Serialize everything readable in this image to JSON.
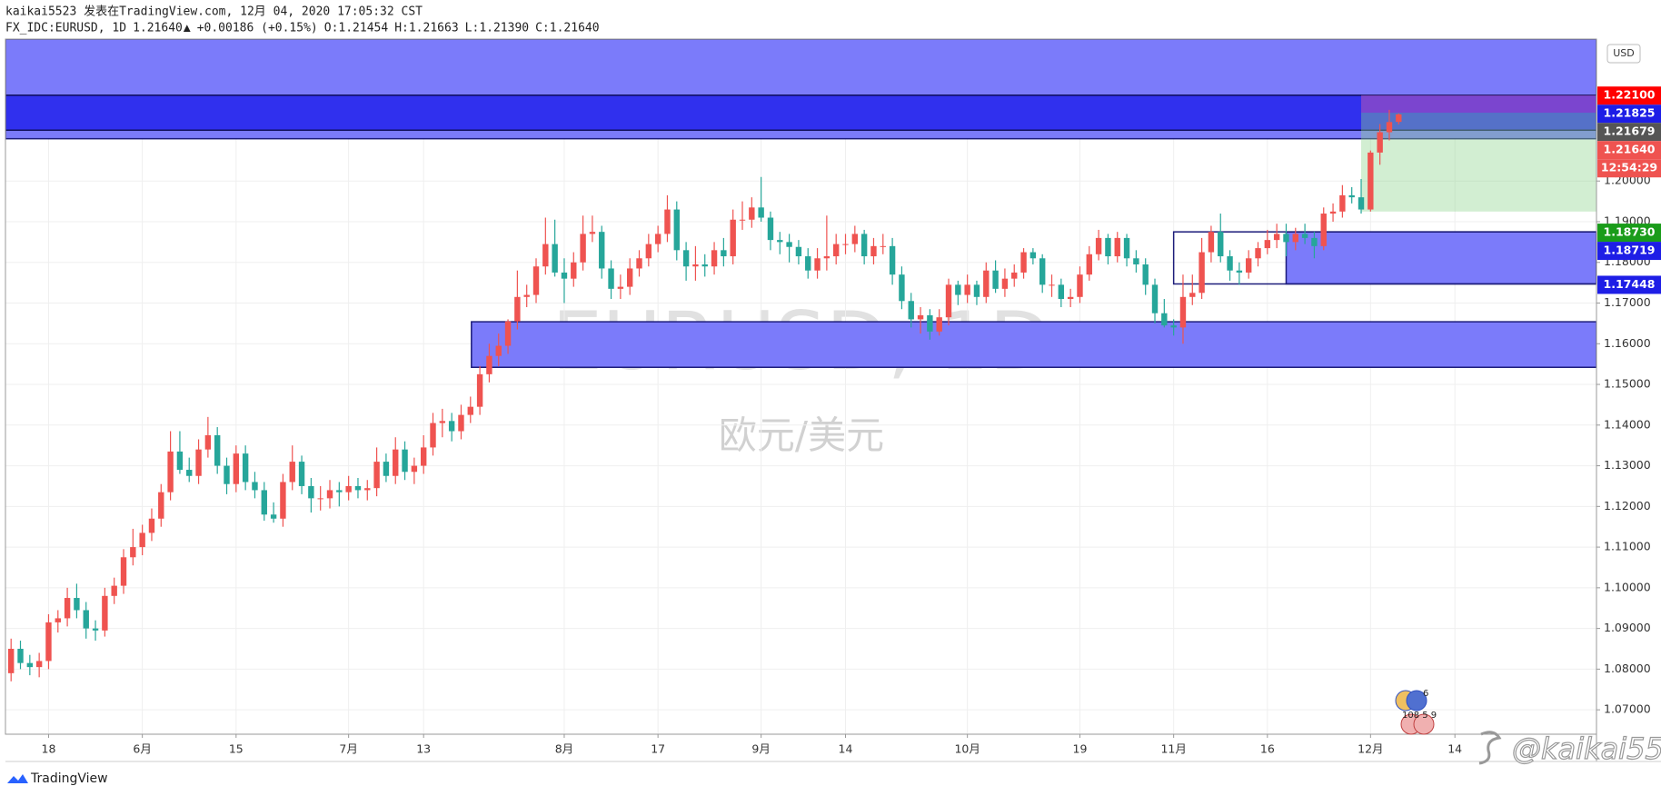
{
  "header": {
    "author": "kaikai5523 发表在TradingView.com, 12月 04, 2020 17:05:32 CST",
    "symbol": "FX_IDC:EURUSD, 1D",
    "last": "1.21640",
    "arrow": "▲",
    "change": "+0.00186 (+0.15%)",
    "ohlc": [
      {
        "key": "O:",
        "value": "1.21454"
      },
      {
        "key": "H:",
        "value": "1.21663"
      },
      {
        "key": "L:",
        "value": "1.21390"
      },
      {
        "key": "C:",
        "value": "1.21640"
      }
    ]
  },
  "chart_data": {
    "type": "candlestick",
    "watermark": "EURUSD, 1D",
    "subtitle": "欧元/美元",
    "currency": "USD",
    "up_color": "#ef5350",
    "down_color": "#26a69a",
    "grid": true,
    "xlim": [
      -0.6,
      169.1
    ],
    "ylim": [
      1.064,
      1.2349
    ],
    "xticks": [
      {
        "value": 4,
        "label": "18"
      },
      {
        "value": 14,
        "label": "6月"
      },
      {
        "value": 24,
        "label": "15"
      },
      {
        "value": 36,
        "label": "7月"
      },
      {
        "value": 44,
        "label": "13"
      },
      {
        "value": 59,
        "label": "8月"
      },
      {
        "value": 69,
        "label": "17"
      },
      {
        "value": 80,
        "label": "9月"
      },
      {
        "value": 89,
        "label": "14"
      },
      {
        "value": 102,
        "label": "10月"
      },
      {
        "value": 114,
        "label": "19"
      },
      {
        "value": 124,
        "label": "11月"
      },
      {
        "value": 134,
        "label": "16"
      },
      {
        "value": 145,
        "label": "12月"
      },
      {
        "value": 154,
        "label": "14"
      }
    ],
    "yticks": [
      {
        "value": 1.07,
        "label": "1.07000"
      },
      {
        "value": 1.08,
        "label": "1.08000"
      },
      {
        "value": 1.09,
        "label": "1.09000"
      },
      {
        "value": 1.1,
        "label": "1.10000"
      },
      {
        "value": 1.11,
        "label": "1.11000"
      },
      {
        "value": 1.12,
        "label": "1.12000"
      },
      {
        "value": 1.13,
        "label": "1.13000"
      },
      {
        "value": 1.14,
        "label": "1.14000"
      },
      {
        "value": 1.15,
        "label": "1.15000"
      },
      {
        "value": 1.16,
        "label": "1.16000"
      },
      {
        "value": 1.17,
        "label": "1.17000"
      },
      {
        "value": 1.18,
        "label": "1.18000"
      },
      {
        "value": 1.19,
        "label": "1.19000"
      },
      {
        "value": 1.2,
        "label": "1.20000"
      }
    ],
    "ohlc": [
      [
        1.079,
        1.0875,
        1.077,
        1.085
      ],
      [
        1.085,
        1.087,
        1.08,
        1.0815
      ],
      [
        1.0815,
        1.0835,
        1.0785,
        1.0805
      ],
      [
        1.0805,
        1.084,
        1.078,
        1.082
      ],
      [
        1.082,
        1.0935,
        1.08,
        1.0915
      ],
      [
        1.0915,
        1.0945,
        1.089,
        1.0925
      ],
      [
        1.0925,
        1.1,
        1.0905,
        1.0975
      ],
      [
        1.0975,
        1.101,
        1.0925,
        1.0945
      ],
      [
        1.0945,
        1.0965,
        1.0875,
        1.09
      ],
      [
        1.09,
        1.092,
        1.087,
        1.0895
      ],
      [
        1.0895,
        1.1,
        1.088,
        1.098
      ],
      [
        1.098,
        1.1025,
        1.096,
        1.1005
      ],
      [
        1.1005,
        1.1095,
        1.0985,
        1.1075
      ],
      [
        1.1075,
        1.1145,
        1.1055,
        1.11
      ],
      [
        1.11,
        1.1155,
        1.108,
        1.1135
      ],
      [
        1.1135,
        1.1195,
        1.1115,
        1.117
      ],
      [
        1.117,
        1.1255,
        1.115,
        1.1235
      ],
      [
        1.1235,
        1.1385,
        1.1215,
        1.1335
      ],
      [
        1.1335,
        1.1385,
        1.128,
        1.129
      ],
      [
        1.129,
        1.132,
        1.126,
        1.1275
      ],
      [
        1.1275,
        1.1365,
        1.1255,
        1.134
      ],
      [
        1.134,
        1.142,
        1.132,
        1.1375
      ],
      [
        1.1375,
        1.1395,
        1.128,
        1.13
      ],
      [
        1.13,
        1.132,
        1.123,
        1.1255
      ],
      [
        1.1255,
        1.135,
        1.1235,
        1.133
      ],
      [
        1.133,
        1.135,
        1.124,
        1.126
      ],
      [
        1.126,
        1.1285,
        1.122,
        1.124
      ],
      [
        1.124,
        1.126,
        1.1165,
        1.118
      ],
      [
        1.118,
        1.121,
        1.116,
        1.117
      ],
      [
        1.117,
        1.128,
        1.115,
        1.126
      ],
      [
        1.126,
        1.135,
        1.124,
        1.131
      ],
      [
        1.131,
        1.1325,
        1.123,
        1.125
      ],
      [
        1.125,
        1.127,
        1.1185,
        1.122
      ],
      [
        1.122,
        1.125,
        1.119,
        1.122
      ],
      [
        1.122,
        1.1265,
        1.1195,
        1.124
      ],
      [
        1.124,
        1.126,
        1.12,
        1.1235
      ],
      [
        1.1235,
        1.1275,
        1.1215,
        1.125
      ],
      [
        1.125,
        1.127,
        1.122,
        1.124
      ],
      [
        1.124,
        1.1265,
        1.1215,
        1.1245
      ],
      [
        1.1245,
        1.1345,
        1.1225,
        1.131
      ],
      [
        1.131,
        1.133,
        1.126,
        1.1275
      ],
      [
        1.1275,
        1.137,
        1.1255,
        1.134
      ],
      [
        1.134,
        1.136,
        1.1265,
        1.1285
      ],
      [
        1.1285,
        1.132,
        1.1255,
        1.13
      ],
      [
        1.13,
        1.1375,
        1.128,
        1.1345
      ],
      [
        1.1345,
        1.143,
        1.1325,
        1.1405
      ],
      [
        1.1405,
        1.144,
        1.137,
        1.141
      ],
      [
        1.141,
        1.143,
        1.136,
        1.1385
      ],
      [
        1.1385,
        1.145,
        1.1365,
        1.1425
      ],
      [
        1.1425,
        1.147,
        1.1405,
        1.1445
      ],
      [
        1.1445,
        1.1545,
        1.1425,
        1.1525
      ],
      [
        1.1525,
        1.16,
        1.1505,
        1.157
      ],
      [
        1.157,
        1.1625,
        1.1545,
        1.1595
      ],
      [
        1.1595,
        1.166,
        1.1575,
        1.1655
      ],
      [
        1.1655,
        1.178,
        1.1635,
        1.1715
      ],
      [
        1.1715,
        1.1745,
        1.169,
        1.172
      ],
      [
        1.172,
        1.181,
        1.17,
        1.179
      ],
      [
        1.179,
        1.191,
        1.177,
        1.1845
      ],
      [
        1.1845,
        1.1905,
        1.1765,
        1.1775
      ],
      [
        1.1775,
        1.181,
        1.17,
        1.176
      ],
      [
        1.176,
        1.1825,
        1.174,
        1.18
      ],
      [
        1.18,
        1.1915,
        1.178,
        1.187
      ],
      [
        1.187,
        1.1915,
        1.185,
        1.1875
      ],
      [
        1.1875,
        1.189,
        1.176,
        1.1785
      ],
      [
        1.1785,
        1.1805,
        1.171,
        1.1735
      ],
      [
        1.1735,
        1.177,
        1.171,
        1.174
      ],
      [
        1.174,
        1.181,
        1.172,
        1.1785
      ],
      [
        1.1785,
        1.183,
        1.1765,
        1.181
      ],
      [
        1.181,
        1.187,
        1.179,
        1.1845
      ],
      [
        1.1845,
        1.189,
        1.1825,
        1.187
      ],
      [
        1.187,
        1.1965,
        1.185,
        1.193
      ],
      [
        1.193,
        1.195,
        1.1805,
        1.183
      ],
      [
        1.183,
        1.185,
        1.1755,
        1.179
      ],
      [
        1.179,
        1.184,
        1.1755,
        1.1795
      ],
      [
        1.1795,
        1.182,
        1.1765,
        1.179
      ],
      [
        1.179,
        1.185,
        1.177,
        1.183
      ],
      [
        1.183,
        1.186,
        1.179,
        1.1815
      ],
      [
        1.1815,
        1.193,
        1.1795,
        1.1905
      ],
      [
        1.1905,
        1.195,
        1.188,
        1.1905
      ],
      [
        1.1905,
        1.196,
        1.1885,
        1.1935
      ],
      [
        1.1935,
        1.201,
        1.19,
        1.191
      ],
      [
        1.191,
        1.1925,
        1.183,
        1.1855
      ],
      [
        1.1855,
        1.1875,
        1.182,
        1.185
      ],
      [
        1.185,
        1.187,
        1.18,
        1.1838
      ],
      [
        1.1838,
        1.1855,
        1.1795,
        1.1815
      ],
      [
        1.1815,
        1.1835,
        1.176,
        1.178
      ],
      [
        1.178,
        1.1835,
        1.176,
        1.181
      ],
      [
        1.181,
        1.1915,
        1.178,
        1.1815
      ],
      [
        1.1815,
        1.187,
        1.1795,
        1.1845
      ],
      [
        1.1845,
        1.187,
        1.182,
        1.1845
      ],
      [
        1.1845,
        1.189,
        1.1825,
        1.187
      ],
      [
        1.187,
        1.188,
        1.1795,
        1.1815
      ],
      [
        1.1815,
        1.186,
        1.1795,
        1.184
      ],
      [
        1.184,
        1.187,
        1.182,
        1.184
      ],
      [
        1.184,
        1.186,
        1.1745,
        1.177
      ],
      [
        1.177,
        1.179,
        1.1685,
        1.1705
      ],
      [
        1.1705,
        1.1725,
        1.164,
        1.166
      ],
      [
        1.166,
        1.169,
        1.1625,
        1.167
      ],
      [
        1.167,
        1.1685,
        1.161,
        1.163
      ],
      [
        1.163,
        1.1685,
        1.162,
        1.1665
      ],
      [
        1.1665,
        1.176,
        1.1645,
        1.1745
      ],
      [
        1.1745,
        1.1755,
        1.1695,
        1.172
      ],
      [
        1.172,
        1.177,
        1.17,
        1.1745
      ],
      [
        1.1745,
        1.1755,
        1.1695,
        1.1715
      ],
      [
        1.1715,
        1.18,
        1.17,
        1.178
      ],
      [
        1.178,
        1.1805,
        1.1725,
        1.1735
      ],
      [
        1.1735,
        1.1785,
        1.1715,
        1.176
      ],
      [
        1.176,
        1.1795,
        1.174,
        1.1775
      ],
      [
        1.1775,
        1.1835,
        1.176,
        1.1825
      ],
      [
        1.1825,
        1.1835,
        1.1795,
        1.181
      ],
      [
        1.181,
        1.182,
        1.1725,
        1.1745
      ],
      [
        1.1745,
        1.177,
        1.1715,
        1.1745
      ],
      [
        1.1745,
        1.176,
        1.169,
        1.171
      ],
      [
        1.171,
        1.1735,
        1.169,
        1.1715
      ],
      [
        1.1715,
        1.179,
        1.17,
        1.177
      ],
      [
        1.177,
        1.184,
        1.1755,
        1.182
      ],
      [
        1.182,
        1.188,
        1.1805,
        1.186
      ],
      [
        1.186,
        1.187,
        1.1795,
        1.1815
      ],
      [
        1.1815,
        1.1875,
        1.18,
        1.186
      ],
      [
        1.186,
        1.187,
        1.179,
        1.181
      ],
      [
        1.181,
        1.183,
        1.1775,
        1.1795
      ],
      [
        1.1795,
        1.181,
        1.172,
        1.1745
      ],
      [
        1.1745,
        1.176,
        1.165,
        1.1675
      ],
      [
        1.1675,
        1.171,
        1.164,
        1.1645
      ],
      [
        1.1645,
        1.166,
        1.162,
        1.164
      ],
      [
        1.164,
        1.177,
        1.16,
        1.1715
      ],
      [
        1.1715,
        1.177,
        1.1695,
        1.1725
      ],
      [
        1.1725,
        1.186,
        1.171,
        1.1825
      ],
      [
        1.1825,
        1.189,
        1.18,
        1.1875
      ],
      [
        1.1875,
        1.192,
        1.18,
        1.1815
      ],
      [
        1.1815,
        1.183,
        1.1755,
        1.178
      ],
      [
        1.178,
        1.18,
        1.1745,
        1.1775
      ],
      [
        1.1775,
        1.183,
        1.176,
        1.181
      ],
      [
        1.181,
        1.185,
        1.179,
        1.1835
      ],
      [
        1.1835,
        1.188,
        1.182,
        1.1855
      ],
      [
        1.1855,
        1.1895,
        1.1835,
        1.187
      ],
      [
        1.187,
        1.1895,
        1.1815,
        1.185
      ],
      [
        1.185,
        1.1885,
        1.183,
        1.187
      ],
      [
        1.187,
        1.1895,
        1.1845,
        1.186
      ],
      [
        1.186,
        1.1875,
        1.181,
        1.184
      ],
      [
        1.184,
        1.1935,
        1.183,
        1.192
      ],
      [
        1.192,
        1.1945,
        1.19,
        1.1925
      ],
      [
        1.1925,
        1.199,
        1.191,
        1.1965
      ],
      [
        1.1965,
        1.1985,
        1.1945,
        1.196
      ],
      [
        1.196,
        1.2005,
        1.192,
        1.193
      ],
      [
        1.193,
        1.2075,
        1.1925,
        1.207
      ],
      [
        1.207,
        1.214,
        1.204,
        1.212
      ],
      [
        1.212,
        1.2175,
        1.21,
        1.2145
      ],
      [
        1.21454,
        1.21663,
        1.2139,
        1.2164
      ]
    ],
    "zones": [
      {
        "top": 1.2349,
        "bottom": 1.2104,
        "x0": -0.6,
        "x1": 169.1,
        "fill": "#7b7bfa",
        "stroke": "#1c1c7a"
      },
      {
        "top": 1.2211,
        "bottom": 1.2125,
        "x0": -0.6,
        "x1": 169.1,
        "fill": "#3030ee",
        "stroke": "#10105a"
      },
      {
        "top": 1.1654,
        "bottom": 1.1542,
        "x0": 49.1,
        "x1": 169.1,
        "fill": "#7b7bfa",
        "stroke": "#1c1c7a"
      },
      {
        "top": 1.1875,
        "bottom": 1.1747,
        "x0": 136,
        "x1": 169.1,
        "fill": "#7b7bfa",
        "stroke": "#1c1c7a"
      },
      {
        "top": 1.1875,
        "bottom": 1.1747,
        "x0": 124,
        "x1": 169.1,
        "fill": "none",
        "stroke": "#1c1c7a"
      },
      {
        "top": 1.2211,
        "bottom": 1.2168,
        "x0": 144,
        "x1": 169.1,
        "fill": "#a050c0aa",
        "stroke": "none"
      },
      {
        "top": 1.2168,
        "bottom": 1.1925,
        "x0": 144,
        "x1": 169.1,
        "fill": "#8fd48f66",
        "stroke": "none"
      }
    ],
    "price_labels": [
      {
        "value": 1.221,
        "label": "1.22100",
        "color": "#ff0000"
      },
      {
        "value": 1.21825,
        "label": "1.21825",
        "color": "#1e1ee6"
      },
      {
        "value": 1.21679,
        "label": "1.21679",
        "color": "#555555"
      },
      {
        "value": 1.2164,
        "label": "1.21640",
        "color": "#ef5350"
      },
      {
        "value": 1.1873,
        "label": "1.18730",
        "color": "#1a9c1a"
      },
      {
        "value": 1.18719,
        "label": "1.18719",
        "color": "#1e1ee6"
      },
      {
        "value": 1.17448,
        "label": "1.17448",
        "color": "#1e1ee6"
      }
    ],
    "countdown": "12:54:29",
    "event_markers": [
      "6",
      "108 5 9"
    ]
  },
  "footer": {
    "brand": "TradingView",
    "handle": "@kaikai55"
  }
}
